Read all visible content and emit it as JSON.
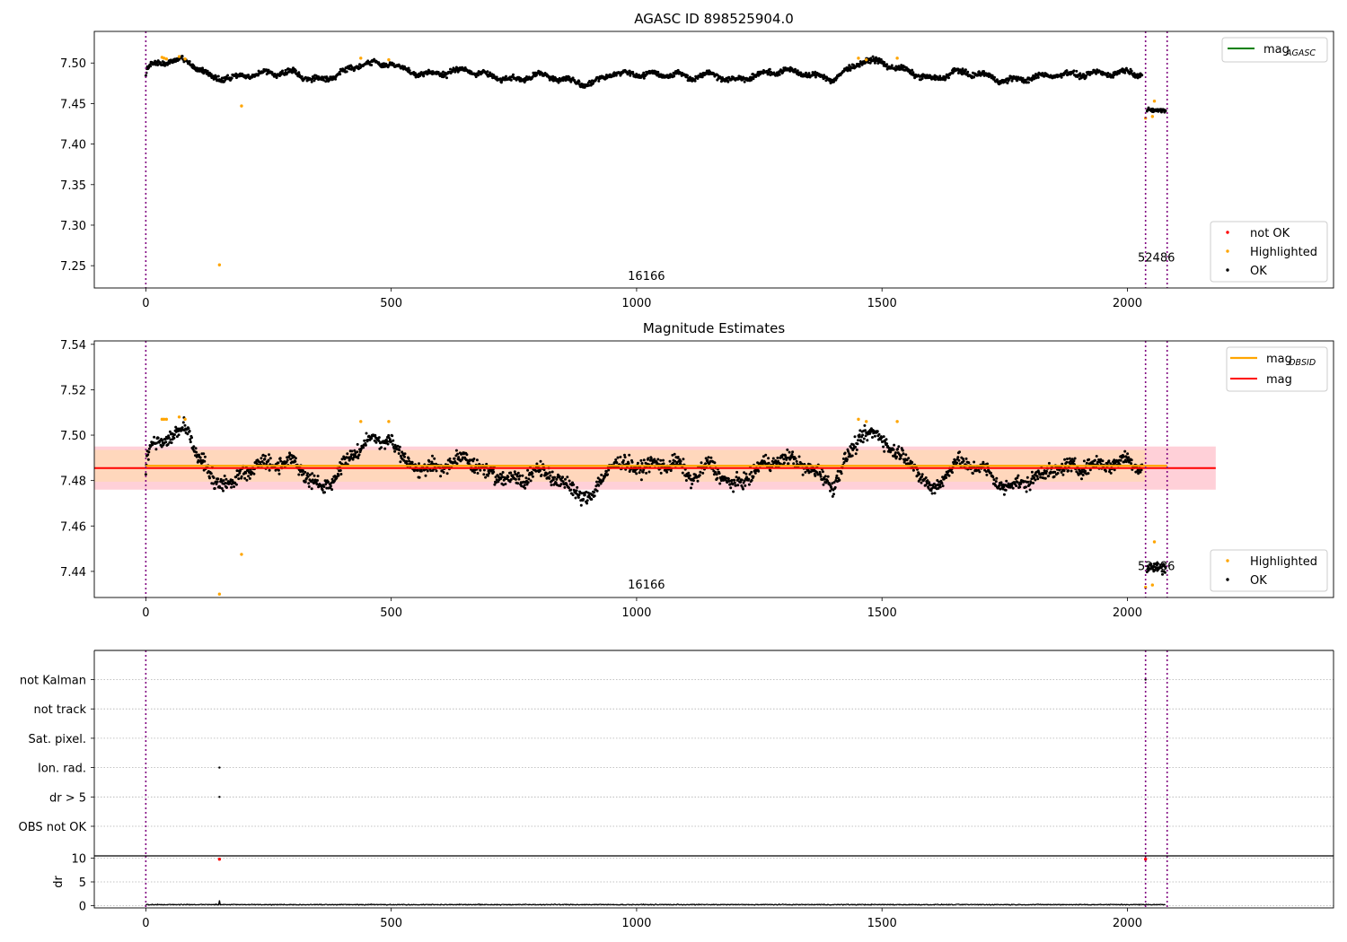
{
  "chart_data": [
    {
      "type": "scatter",
      "title": "AGASC ID 898525904.0",
      "xlabel": "",
      "ylabel": "",
      "xlim": [
        -105,
        2420
      ],
      "ylim": [
        7.2225,
        7.539
      ],
      "xticks": [
        0,
        500,
        1000,
        1500,
        2000
      ],
      "yticks": [
        7.25,
        7.3,
        7.35,
        7.4,
        7.45,
        7.5
      ],
      "grid": false,
      "obsid_boundaries": [
        0,
        2037,
        2081
      ],
      "obsid_labels": [
        {
          "text": "16166",
          "x": 1020,
          "y": 7.2325
        },
        {
          "text": "52486",
          "x": 2059,
          "y": 7.255
        }
      ],
      "lines": [
        {
          "name": "mag_AGASC",
          "label_main": "mag",
          "label_sub": "AGASC",
          "color": "#008000"
        }
      ],
      "series": [
        {
          "name": "not OK",
          "color": "#ff0000",
          "points": []
        },
        {
          "name": "Highlighted",
          "color": "#ffa500",
          "points": [
            [
              33,
              7.507
            ],
            [
              37,
              7.506
            ],
            [
              42,
              7.505
            ],
            [
              68,
              7.508
            ],
            [
              80,
              7.505
            ],
            [
              150,
              7.251
            ],
            [
              195,
              7.447
            ],
            [
              438,
              7.506
            ],
            [
              495,
              7.504
            ],
            [
              1452,
              7.506
            ],
            [
              1468,
              7.504
            ],
            [
              1531,
              7.506
            ],
            [
              2037,
              7.432
            ],
            [
              2051,
              7.434
            ],
            [
              2055,
              7.453
            ]
          ]
        },
        {
          "name": "OK",
          "color": "#000000",
          "segments": [
            {
              "x0": 0,
              "x1": 2030,
              "base": 7.488,
              "amp": 0.0085,
              "noise": 0.0045,
              "pts": [
                [
                  2,
                  7.492
                ],
                [
                  12,
                  7.497
                ],
                [
                  25,
                  7.499
                ],
                [
                  50,
                  7.503
                ],
                [
                  85,
                  7.502
                ],
                [
                  105,
                  7.494
                ],
                [
                  125,
                  7.486
                ],
                [
                  140,
                  7.481
                ],
                [
                  160,
                  7.482
                ],
                [
                  175,
                  7.481
                ],
                [
                  200,
                  7.484
                ],
                [
                  250,
                  7.488
                ],
                [
                  300,
                  7.488
                ],
                [
                  330,
                  7.482
                ],
                [
                  360,
                  7.479
                ],
                [
                  400,
                  7.489
                ],
                [
                  420,
                  7.493
                ],
                [
                  450,
                  7.501
                ],
                [
                  480,
                  7.497
                ],
                [
                  500,
                  7.502
                ],
                [
                  520,
                  7.492
                ],
                [
                  560,
                  7.486
                ],
                [
                  600,
                  7.487
                ],
                [
                  650,
                  7.492
                ],
                [
                  700,
                  7.484
                ],
                [
                  760,
                  7.479
                ],
                [
                  800,
                  7.486
                ],
                [
                  850,
                  7.48
                ],
                [
                  880,
                  7.476
                ],
                [
                  910,
                  7.474
                ],
                [
                  950,
                  7.488
                ],
                [
                  1000,
                  7.486
                ],
                [
                  1050,
                  7.486
                ],
                [
                  1080,
                  7.486
                ],
                [
                  1110,
                  7.482
                ],
                [
                  1150,
                  7.487
                ],
                [
                  1200,
                  7.478
                ],
                [
                  1250,
                  7.486
                ],
                [
                  1300,
                  7.491
                ],
                [
                  1350,
                  7.486
                ],
                [
                  1400,
                  7.48
                ],
                [
                  1430,
                  7.491
                ],
                [
                  1460,
                  7.503
                ],
                [
                  1500,
                  7.501
                ],
                [
                  1530,
                  7.493
                ],
                [
                  1560,
                  7.489
                ],
                [
                  1600,
                  7.479
                ],
                [
                  1650,
                  7.489
                ],
                [
                  1700,
                  7.486
                ],
                [
                  1750,
                  7.478
                ],
                [
                  1800,
                  7.481
                ],
                [
                  1850,
                  7.486
                ],
                [
                  1900,
                  7.486
                ],
                [
                  1950,
                  7.487
                ],
                [
                  2000,
                  7.489
                ],
                [
                  2030,
                  7.487
                ]
              ]
            },
            {
              "x0": 2040,
              "x1": 2078,
              "base": 7.441,
              "amp": 0.002,
              "noise": 0.0035,
              "pts": [
                [
                  2040,
                  7.441
                ],
                [
                  2078,
                  7.442
                ]
              ]
            }
          ]
        }
      ],
      "legend": "lower right"
    },
    {
      "type": "scatter",
      "title": "Magnitude Estimates",
      "xlabel": "",
      "ylabel": "",
      "xlim": [
        -105,
        2420
      ],
      "ylim": [
        7.4285,
        7.5415
      ],
      "xticks": [
        0,
        500,
        1000,
        1500,
        2000
      ],
      "yticks": [
        7.44,
        7.46,
        7.48,
        7.5,
        7.52,
        7.54
      ],
      "grid": false,
      "obsid_boundaries": [
        0,
        2037,
        2081
      ],
      "obsid_labels": [
        {
          "text": "16166",
          "x": 1020,
          "y": 7.4325
        },
        {
          "text": "52486",
          "x": 2059,
          "y": 7.4405
        }
      ],
      "lines": [
        {
          "name": "mag_OBSID",
          "label_main": "mag",
          "label_sub": "OBSID",
          "color": "#ffa500",
          "segments": [
            [
              0,
              2037,
              7.4865
            ],
            [
              2037,
              2081,
              7.4865
            ]
          ]
        },
        {
          "name": "mag",
          "label_main": "mag",
          "label_sub": "",
          "color": "#ff0000",
          "value": 7.4855,
          "x_range": [
            -105,
            2180
          ]
        }
      ],
      "bands": [
        {
          "color": "#ffc0cb",
          "y0": 7.476,
          "y1": 7.495,
          "x0": -105,
          "x1": 2180
        },
        {
          "color": "#ffd9b3",
          "y0": 7.4795,
          "y1": 7.4935,
          "x0": -105,
          "x1": 2037
        }
      ],
      "series": [
        {
          "name": "Highlighted",
          "color": "#ffa500",
          "points": [
            [
              33,
              7.507
            ],
            [
              37,
              7.507
            ],
            [
              42,
              7.507
            ],
            [
              68,
              7.508
            ],
            [
              80,
              7.507
            ],
            [
              150,
              7.43
            ],
            [
              195,
              7.4475
            ],
            [
              438,
              7.506
            ],
            [
              495,
              7.506
            ],
            [
              1452,
              7.507
            ],
            [
              1468,
              7.506
            ],
            [
              1531,
              7.506
            ],
            [
              2037,
              7.433
            ],
            [
              2051,
              7.434
            ],
            [
              2055,
              7.453
            ]
          ]
        },
        {
          "name": "OK",
          "color": "#000000",
          "segments": [
            {
              "x0": 0,
              "x1": 2030,
              "base": 7.4855,
              "amp": 0.0045,
              "noise": 0.0045,
              "pts": [
                [
                  2,
                  7.491
                ],
                [
                  12,
                  7.495
                ],
                [
                  25,
                  7.497
                ],
                [
                  50,
                  7.499
                ],
                [
                  85,
                  7.503
                ],
                [
                  105,
                  7.492
                ],
                [
                  125,
                  7.484
                ],
                [
                  140,
                  7.479
                ],
                [
                  160,
                  7.48
                ],
                [
                  175,
                  7.478
                ],
                [
                  200,
                  7.484
                ],
                [
                  250,
                  7.488
                ],
                [
                  300,
                  7.488
                ],
                [
                  330,
                  7.482
                ],
                [
                  360,
                  7.475
                ],
                [
                  400,
                  7.487
                ],
                [
                  420,
                  7.49
                ],
                [
                  450,
                  7.499
                ],
                [
                  480,
                  7.496
                ],
                [
                  500,
                  7.499
                ],
                [
                  520,
                  7.49
                ],
                [
                  560,
                  7.485
                ],
                [
                  600,
                  7.486
                ],
                [
                  650,
                  7.49
                ],
                [
                  700,
                  7.483
                ],
                [
                  760,
                  7.48
                ],
                [
                  800,
                  7.485
                ],
                [
                  850,
                  7.479
                ],
                [
                  880,
                  7.474
                ],
                [
                  910,
                  7.473
                ],
                [
                  950,
                  7.488
                ],
                [
                  1000,
                  7.486
                ],
                [
                  1050,
                  7.487
                ],
                [
                  1080,
                  7.488
                ],
                [
                  1110,
                  7.481
                ],
                [
                  1150,
                  7.487
                ],
                [
                  1200,
                  7.477
                ],
                [
                  1250,
                  7.486
                ],
                [
                  1300,
                  7.49
                ],
                [
                  1350,
                  7.486
                ],
                [
                  1400,
                  7.478
                ],
                [
                  1430,
                  7.49
                ],
                [
                  1460,
                  7.501
                ],
                [
                  1500,
                  7.499
                ],
                [
                  1530,
                  7.492
                ],
                [
                  1560,
                  7.488
                ],
                [
                  1600,
                  7.475
                ],
                [
                  1650,
                  7.488
                ],
                [
                  1700,
                  7.486
                ],
                [
                  1750,
                  7.477
                ],
                [
                  1800,
                  7.48
                ],
                [
                  1850,
                  7.485
                ],
                [
                  1900,
                  7.486
                ],
                [
                  1950,
                  7.487
                ],
                [
                  2000,
                  7.489
                ],
                [
                  2030,
                  7.486
                ]
              ]
            },
            {
              "x0": 2040,
              "x1": 2078,
              "base": 7.441,
              "amp": 0.002,
              "noise": 0.0035,
              "pts": [
                [
                  2040,
                  7.441
                ],
                [
                  2078,
                  7.442
                ]
              ]
            }
          ]
        }
      ],
      "legend": "lower right"
    },
    {
      "type": "scatter",
      "title": "",
      "xlabel": "",
      "ylabel": "",
      "xlim": [
        -105,
        2420
      ],
      "categories": [
        "OBS not OK",
        "dr > 5",
        "Ion. rad.",
        "Sat. pixel.",
        "not track",
        "not Kalman"
      ],
      "grid": true,
      "obsid_boundaries": [
        0,
        2037,
        2081
      ],
      "flags": [
        {
          "category": "Ion. rad.",
          "x": 150
        },
        {
          "category": "dr > 5",
          "x": 150
        },
        {
          "category": "not Kalman",
          "x": 2037
        }
      ]
    },
    {
      "type": "scatter",
      "title": "",
      "xlabel": "",
      "ylabel": "dr",
      "xlim": [
        -105,
        2420
      ],
      "ylim": [
        -0.5,
        10.5
      ],
      "yticks": [
        0,
        5,
        10
      ],
      "grid": true,
      "obsid_boundaries": [
        0,
        2037,
        2081
      ],
      "red_points": [
        [
          150,
          9.8
        ],
        [
          2037,
          9.8
        ]
      ],
      "series": [
        {
          "name": "dr",
          "color": "#000000",
          "base": 0.2,
          "noise": 0.12,
          "x0": 0,
          "x1": 2078,
          "spikes": [
            [
              150,
              1.1
            ]
          ]
        }
      ]
    }
  ]
}
